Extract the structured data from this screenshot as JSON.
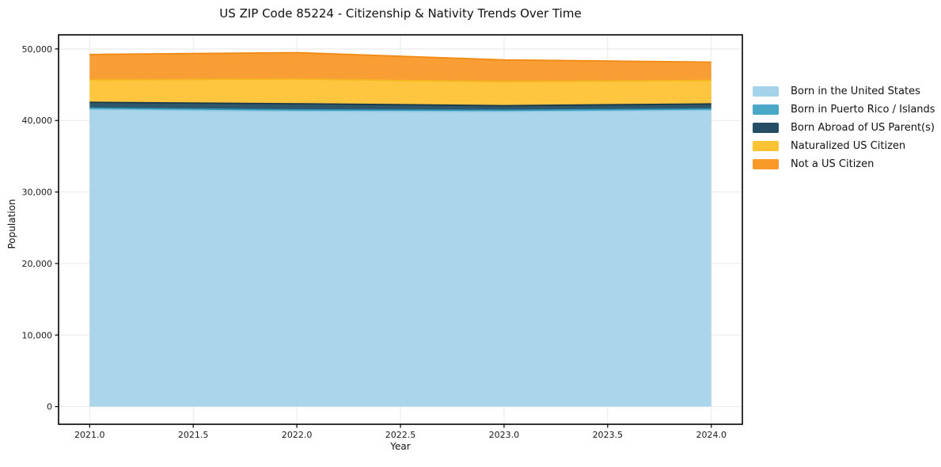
{
  "title": "US ZIP Code 85224 - Citizenship & Nativity Trends Over Time",
  "chart_data": {
    "type": "area",
    "stacked": true,
    "title": "US ZIP Code 85224 - Citizenship & Nativity Trends Over Time",
    "xlabel": "Year",
    "ylabel": "Population",
    "x": [
      2021,
      2022,
      2023,
      2024
    ],
    "series": [
      {
        "name": "Born in the United States",
        "color": "#a5d3e9",
        "edge": "#8fc6e2",
        "values": [
          41550,
          41300,
          41250,
          41450
        ]
      },
      {
        "name": "Born in Puerto Rico / Islands",
        "color": "#48a8c5",
        "edge": "#2f9ab9",
        "values": [
          180,
          170,
          170,
          160
        ]
      },
      {
        "name": "Born Abroad of US Parent(s)",
        "color": "#234e63",
        "edge": "#17394a",
        "values": [
          800,
          870,
          650,
          700
        ]
      },
      {
        "name": "Naturalized US Citizen",
        "color": "#fdc334",
        "edge": "#f5b71e",
        "values": [
          3150,
          3450,
          3350,
          3300
        ]
      },
      {
        "name": "Not a US Citizen",
        "color": "#f8992a",
        "edge": "#f28a14",
        "values": [
          3550,
          3700,
          3050,
          2550
        ]
      }
    ],
    "xlim": [
      2020.85,
      2024.15
    ],
    "ylim": [
      -2475,
      51975
    ],
    "xticks": [
      2021.0,
      2021.5,
      2022.0,
      2022.5,
      2023.0,
      2023.5,
      2024.0
    ],
    "xtick_labels": [
      "2021.0",
      "2021.5",
      "2022.0",
      "2022.5",
      "2023.0",
      "2023.5",
      "2024.0"
    ],
    "yticks": [
      0,
      10000,
      20000,
      30000,
      40000,
      50000
    ],
    "ytick_labels": [
      "0",
      "10,000",
      "20,000",
      "30,000",
      "40,000",
      "50,000"
    ],
    "grid": true,
    "grid_color": "#e8e8e8",
    "spine_color": "#000000",
    "tick_label_color": "#1a1a1a",
    "legend_position": "right-outside",
    "fill_opacity": 0.95
  }
}
